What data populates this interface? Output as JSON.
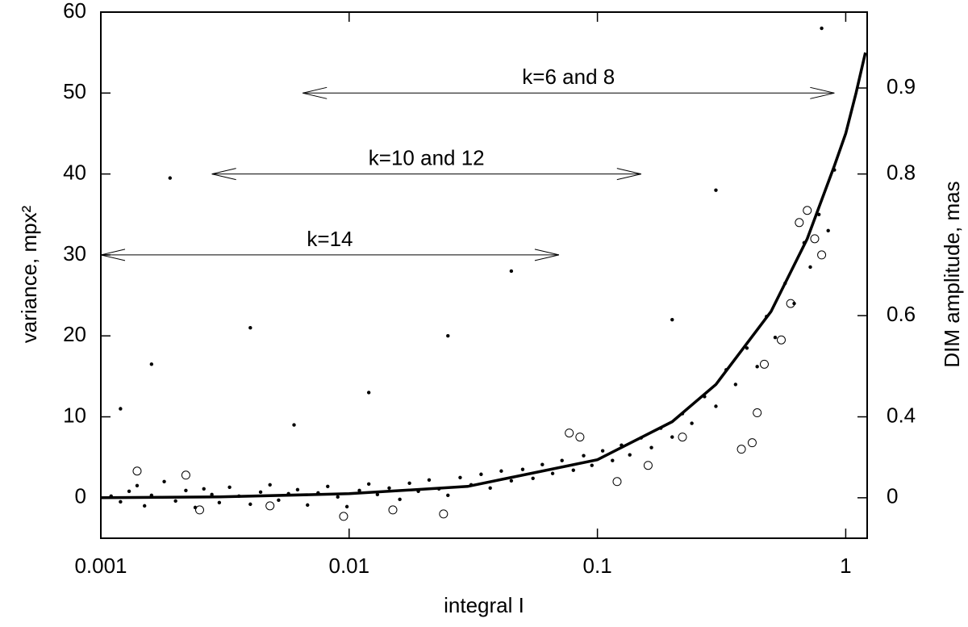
{
  "chart_data": {
    "type": "scatter",
    "xlabel": "integral I",
    "ylabel": "variance, mpx²",
    "y2label": "DIM amplitude, mas",
    "xscale": "log",
    "xlim": [
      0.001,
      1.22
    ],
    "xticks": [
      0.001,
      0.01,
      0.1,
      1
    ],
    "ylim": [
      -5,
      60
    ],
    "yticks": [
      0,
      10,
      20,
      30,
      40,
      50,
      60
    ],
    "y2scale": "square",
    "y2factor": 62.5,
    "y2ticks": [
      0,
      0.4,
      0.6,
      0.8,
      0.9
    ],
    "series": [
      {
        "marker": "dot",
        "color": "#000000",
        "x": [
          0.0011,
          0.0012,
          0.0013,
          0.0014,
          0.0015,
          0.0016,
          0.0018,
          0.002,
          0.0022,
          0.0024,
          0.0026,
          0.0028,
          0.003,
          0.0033,
          0.0036,
          0.004,
          0.0044,
          0.0048,
          0.0052,
          0.0057,
          0.0062,
          0.0068,
          0.0075,
          0.0082,
          0.009,
          0.0098,
          0.011,
          0.012,
          0.013,
          0.0145,
          0.016,
          0.0175,
          0.019,
          0.021,
          0.023,
          0.025,
          0.028,
          0.031,
          0.034,
          0.037,
          0.041,
          0.045,
          0.05,
          0.055,
          0.06,
          0.066,
          0.072,
          0.08,
          0.088,
          0.095,
          0.105,
          0.115,
          0.125,
          0.135,
          0.15,
          0.165,
          0.18,
          0.2,
          0.22,
          0.24,
          0.27,
          0.3,
          0.33,
          0.36,
          0.4,
          0.44,
          0.48,
          0.52,
          0.57,
          0.62,
          0.68,
          0.72,
          0.78,
          0.85,
          0.9,
          0.0019,
          0.0016,
          0.004,
          0.045,
          0.012,
          0.0012,
          0.2,
          0.025,
          0.006,
          0.3,
          0.8
        ],
        "values": [
          0.2,
          -0.5,
          0.8,
          1.5,
          -1,
          0.3,
          2,
          -0.4,
          0.9,
          -1.2,
          1.1,
          0.4,
          -0.6,
          1.3,
          0.2,
          -0.8,
          0.7,
          1.6,
          -0.3,
          0.5,
          1.0,
          -0.9,
          0.6,
          1.4,
          0.1,
          -1.1,
          0.9,
          1.7,
          0.4,
          1.2,
          -0.2,
          1.8,
          0.8,
          2.2,
          1.1,
          0.3,
          2.5,
          1.6,
          2.9,
          1.2,
          3.3,
          2.1,
          3.5,
          2.4,
          4.1,
          3.0,
          4.6,
          3.4,
          5.2,
          4.0,
          5.8,
          4.6,
          6.5,
          5.3,
          7.4,
          6.2,
          8.6,
          7.5,
          10.4,
          9.2,
          12.5,
          11.3,
          15.8,
          14.0,
          18.5,
          16.2,
          22.4,
          19.8,
          26.5,
          24.0,
          31.5,
          28.5,
          35.0,
          33.0,
          40.5,
          39.5,
          16.5,
          21,
          28,
          13,
          11,
          22,
          20,
          9,
          38,
          58
        ]
      },
      {
        "marker": "circle",
        "color": "#000000",
        "x": [
          0.0014,
          0.0022,
          0.0025,
          0.0048,
          0.0095,
          0.015,
          0.024,
          0.077,
          0.085,
          0.12,
          0.16,
          0.22,
          0.38,
          0.42,
          0.44,
          0.47,
          0.55,
          0.6,
          0.65,
          0.7,
          0.75,
          0.8
        ],
        "values": [
          3.3,
          2.8,
          -1.5,
          -1,
          -2.3,
          -1.5,
          -2,
          8,
          7.5,
          2,
          4,
          7.5,
          6,
          6.8,
          10.5,
          16.5,
          19.5,
          24,
          34,
          35.5,
          32,
          30
        ]
      },
      {
        "marker": "line",
        "color": "#000000",
        "x": [
          0.001,
          0.003,
          0.01,
          0.03,
          0.1,
          0.2,
          0.3,
          0.5,
          0.7,
          0.9,
          1,
          1.1,
          1.2
        ],
        "values": [
          0,
          0.1,
          0.5,
          1.4,
          4.7,
          9.4,
          14,
          23,
          32,
          41,
          45,
          50,
          55
        ]
      }
    ],
    "annotations": [
      {
        "text": "k=6 and 8",
        "x": [
          0.0065,
          0.9
        ],
        "y": 50
      },
      {
        "text": "k=10 and 12",
        "x": [
          0.0028,
          0.15
        ],
        "y": 40
      },
      {
        "text": "k=14",
        "x": [
          0.001,
          0.07
        ],
        "y": 30
      }
    ]
  }
}
